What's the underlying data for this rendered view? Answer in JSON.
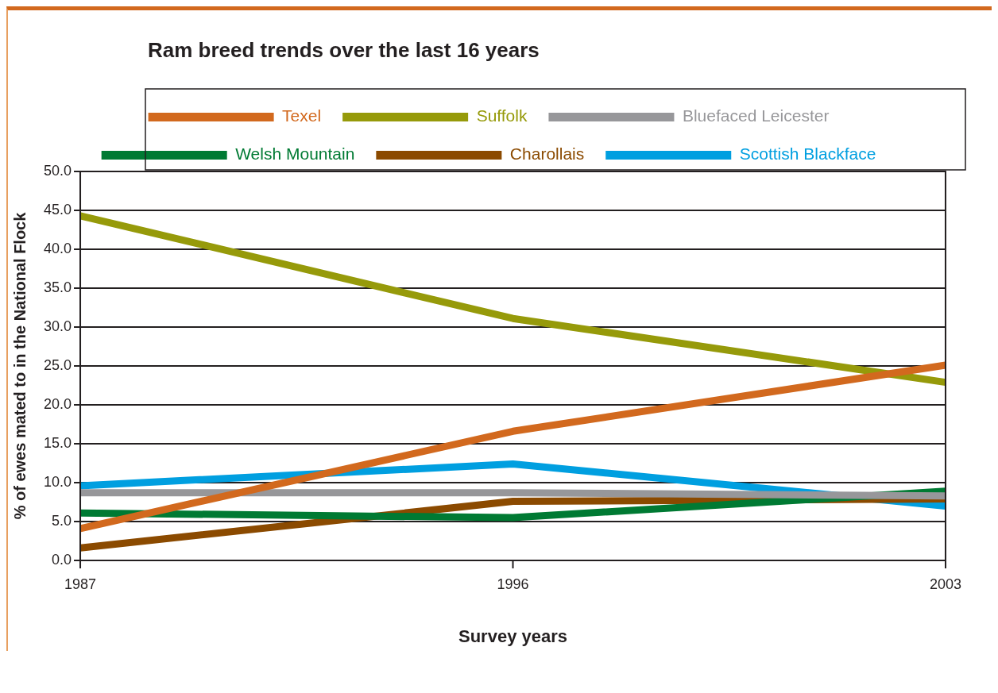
{
  "chart_data": {
    "type": "line",
    "title": "Ram breed trends over the last 16 years",
    "xlabel": "Survey years",
    "ylabel": "% of ewes mated to in the National Flock",
    "categories": [
      "1987",
      "1996",
      "2003"
    ],
    "series": [
      {
        "name": "Texel",
        "color": "#d2691e",
        "values": [
          4.1,
          16.6,
          25.1
        ]
      },
      {
        "name": "Suffolk",
        "color": "#969a0a",
        "values": [
          44.3,
          31.1,
          22.9
        ]
      },
      {
        "name": "Bluefaced Leicester",
        "color": "#97979a",
        "values": [
          8.7,
          8.7,
          8.3
        ]
      },
      {
        "name": "Welsh Mountain",
        "color": "#007a33",
        "values": [
          6.1,
          5.5,
          8.9
        ]
      },
      {
        "name": "Charollais",
        "color": "#8b4a00",
        "values": [
          1.6,
          7.6,
          7.9
        ]
      },
      {
        "name": "Scottish Blackface",
        "color": "#009fe0",
        "values": [
          9.6,
          12.4,
          7.0
        ]
      }
    ],
    "ylim": [
      0,
      50
    ],
    "yticks": [
      {
        "value": 0,
        "label": "0.0"
      },
      {
        "value": 5,
        "label": "5.0"
      },
      {
        "value": 10,
        "label": "10.0"
      },
      {
        "value": 15,
        "label": "15.0"
      },
      {
        "value": 20,
        "label": "20.0"
      },
      {
        "value": 25,
        "label": "25.0"
      },
      {
        "value": 30,
        "label": "30.0"
      },
      {
        "value": 35,
        "label": "35.0"
      },
      {
        "value": 40,
        "label": "40.0"
      },
      {
        "value": 45,
        "label": "45.0"
      },
      {
        "value": 50,
        "label": "50.0"
      }
    ],
    "grid": "y",
    "legend": "top",
    "marker": "none",
    "line_style": "solid"
  }
}
